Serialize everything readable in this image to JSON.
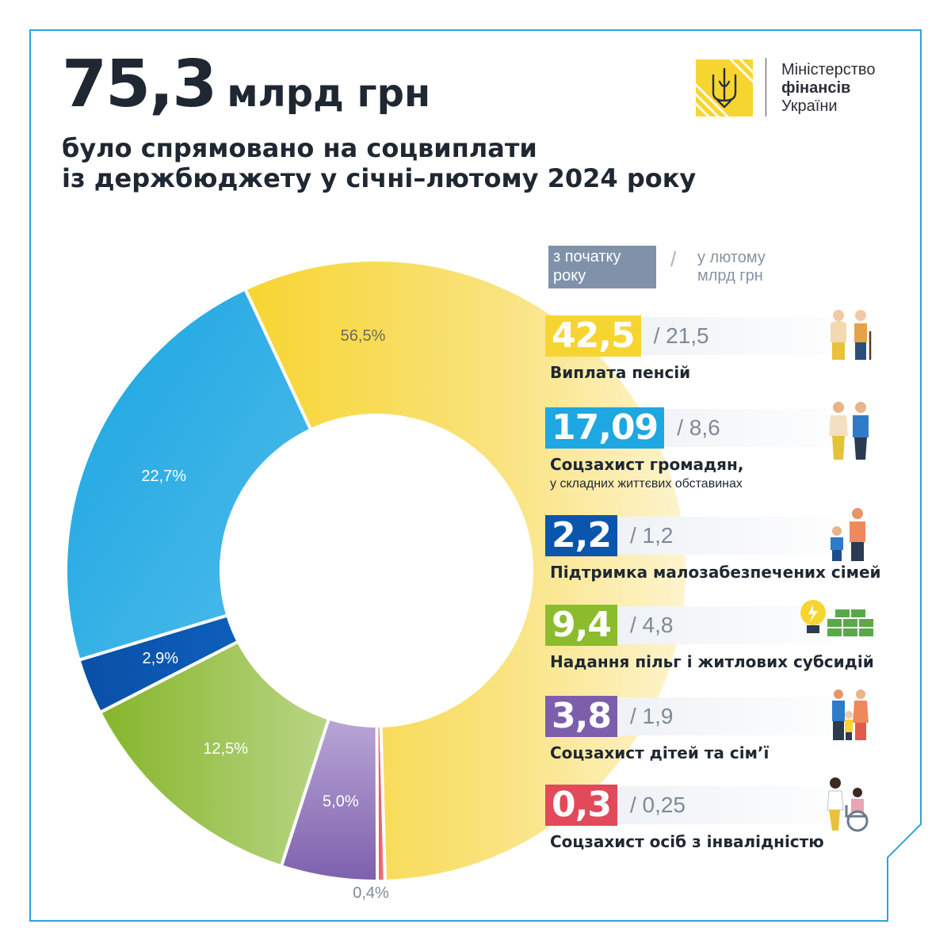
{
  "headline": {
    "amount": "75,3",
    "unit": "млрд грн",
    "line2": "було спрямовано на соцвиплати",
    "line3": "із держбюджету у січні–лютому 2024 року"
  },
  "logo": {
    "line1": "Міністерство",
    "line2": "фінансів",
    "line3": "України"
  },
  "legend": {
    "ytd_label": "з початку року",
    "slash": "/",
    "monthly_label_1": "у лютому",
    "monthly_label_2": "млрд грн"
  },
  "colors": {
    "frame": "#2ea3dc",
    "yellow": "#f7d531",
    "light_blue": "#1ea7e1",
    "dark_blue": "#0b56ad",
    "green": "#8dbb2e",
    "purple": "#7d5eaa",
    "red": "#e2495a"
  },
  "chart_data": {
    "type": "pie",
    "variant": "donut",
    "title": "75,3 млрд грн",
    "slices": [
      {
        "label": "Виплата пенсій",
        "percent_label": "56,5%",
        "value": 56.5,
        "color": "#f7d531"
      },
      {
        "label": "Соцзахист осіб з інвалідністю",
        "percent_label": "0,4%",
        "value": 0.4,
        "color": "#e2495a"
      },
      {
        "label": "Соцзахист дітей та сім’ї",
        "percent_label": "5,0%",
        "value": 5.0,
        "color": "#8f72b8"
      },
      {
        "label": "Надання пільг і житлових субсидій",
        "percent_label": "12,5%",
        "value": 12.5,
        "color": "#8dbb2e"
      },
      {
        "label": "Підтримка малозабезпечених сімей",
        "percent_label": "2,9%",
        "value": 2.9,
        "color": "#0b56ad"
      },
      {
        "label": "Соцзахист громадян, у складних життєвих обставинах",
        "percent_label": "22,7%",
        "value": 22.7,
        "color": "#1ea7e1"
      }
    ]
  },
  "categories": [
    {
      "value": "42,5",
      "monthly": "/ 21,5",
      "label": "Виплата пенсій",
      "sublabel": "",
      "color": "#f7d531",
      "icon": "elderly-couple-icon"
    },
    {
      "value": "17,09",
      "monthly": "/ 8,6",
      "label": "Соцзахист громадян,",
      "sublabel": "у складних життєвих обставинах",
      "color": "#1ea7e1",
      "icon": "couple-icon"
    },
    {
      "value": "2,2",
      "monthly": "/ 1,2",
      "label": "Підтримка малозабезпечених сімей",
      "sublabel": "",
      "color": "#0b56ad",
      "icon": "parent-child-icon"
    },
    {
      "value": "9,4",
      "monthly": "/ 4,8",
      "label": "Надання пільг і житлових субсидій",
      "sublabel": "",
      "color": "#8dbb2e",
      "icon": "lightbulb-money-icon"
    },
    {
      "value": "3,8",
      "monthly": "/ 1,9",
      "label": "Соцзахист дітей та сім’ї",
      "sublabel": "",
      "color": "#7d5eaa",
      "icon": "family-icon"
    },
    {
      "value": "0,3",
      "monthly": "/ 0,25",
      "label": "Соцзахист осіб з інвалідністю",
      "sublabel": "",
      "color": "#e2495a",
      "icon": "wheelchair-icon"
    }
  ]
}
